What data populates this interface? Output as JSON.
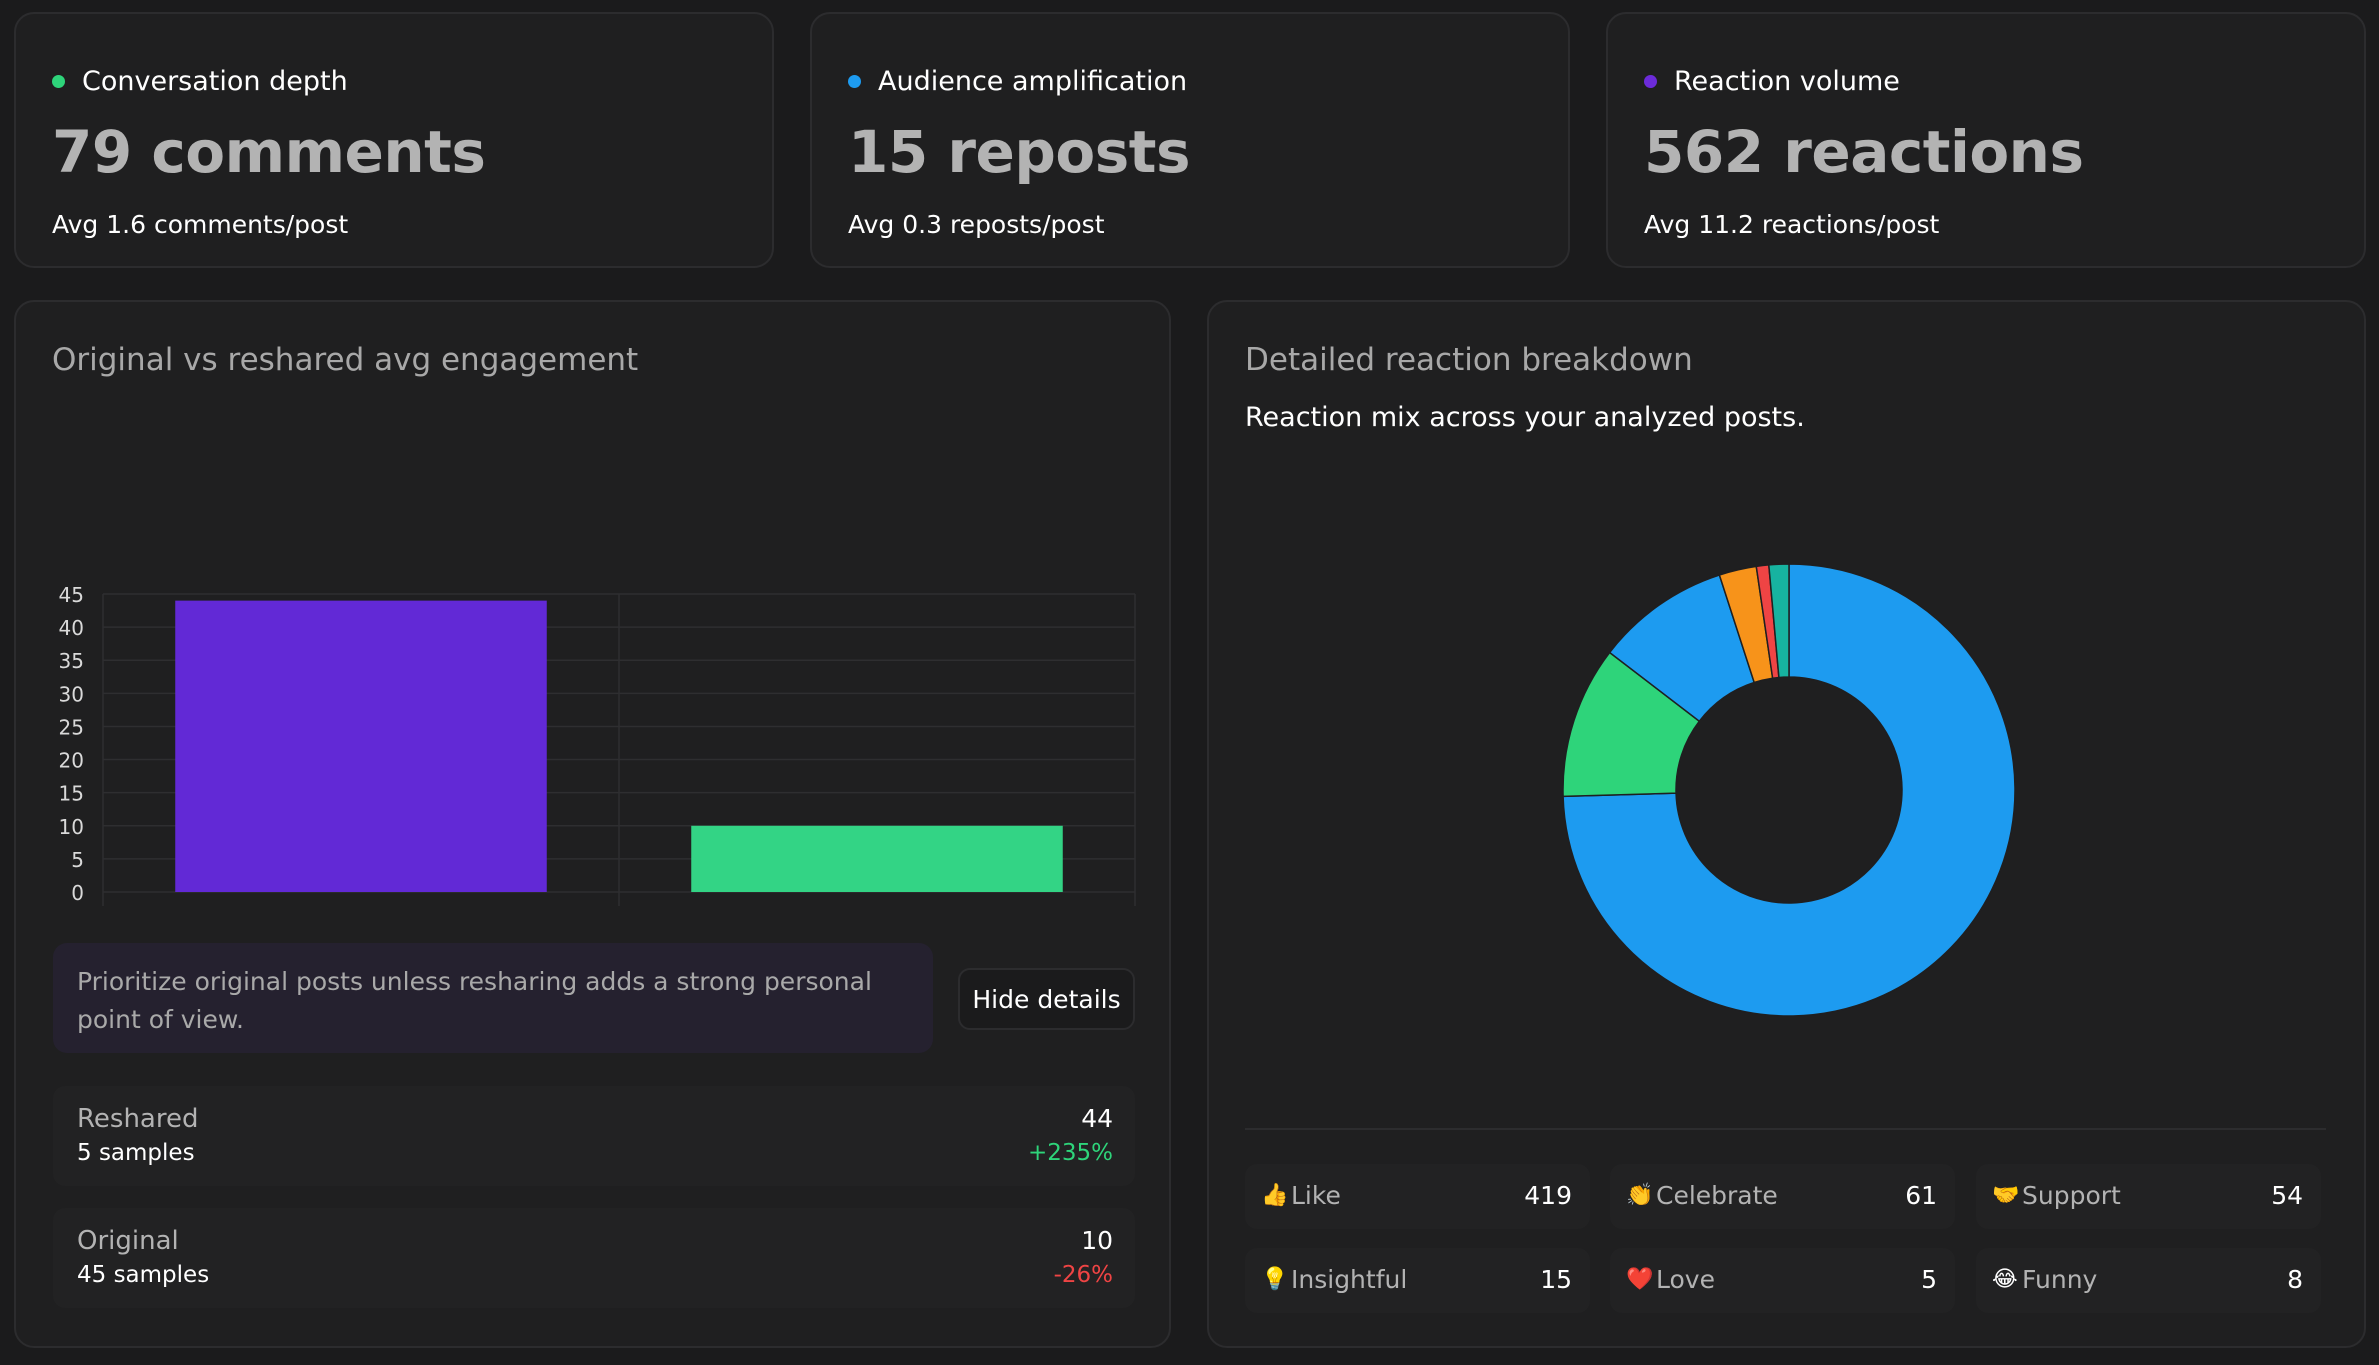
{
  "kpis": [
    {
      "label": "Conversation depth",
      "value": "79 comments",
      "sub": "Avg 1.6 comments/post",
      "dot_color": "#2ed47a"
    },
    {
      "label": "Audience amplification",
      "value": "15 reposts",
      "sub": "Avg 0.3 reposts/post",
      "dot_color": "#1d9bf0"
    },
    {
      "label": "Reaction volume",
      "value": "562 reactions",
      "sub": "Avg 11.2 reactions/post",
      "dot_color": "#6c2bd9"
    }
  ],
  "engagement": {
    "title": "Original vs reshared avg engagement",
    "tip": "Prioritize original posts unless resharing adds a strong personal point of view.",
    "hide_label": "Hide details",
    "rows": [
      {
        "name": "Reshared",
        "samples": "5 samples",
        "value": "44",
        "delta": "+235%",
        "delta_color": "#2ed47a"
      },
      {
        "name": "Original",
        "samples": "45 samples",
        "value": "10",
        "delta": "-26%",
        "delta_color": "#ef4444"
      }
    ]
  },
  "chart_data": [
    {
      "type": "bar",
      "categories": [
        "Reshared",
        "Original"
      ],
      "values": [
        44,
        10
      ],
      "colors": [
        "#6229d6",
        "#33d485"
      ],
      "ylim": [
        0,
        45
      ],
      "yticks": [
        0,
        5,
        10,
        15,
        20,
        25,
        30,
        35,
        40,
        45
      ],
      "grid": true,
      "title": "Original vs reshared avg engagement"
    },
    {
      "type": "pie",
      "donut": true,
      "categories": [
        "Like",
        "Celebrate",
        "Support",
        "Insightful",
        "Love",
        "Funny"
      ],
      "values": [
        419,
        61,
        54,
        15,
        5,
        8
      ],
      "colors": [
        "#1d9bf0",
        "#2ed47a",
        "#1d9bf0",
        "#f7931a",
        "#ef4444",
        "#17b3a0"
      ],
      "title": "Detailed reaction breakdown"
    }
  ],
  "reactions": {
    "title": "Detailed reaction breakdown",
    "subtitle": "Reaction mix across your analyzed posts.",
    "items": [
      {
        "icon": "👍",
        "label": "Like",
        "count": "419"
      },
      {
        "icon": "👏",
        "label": "Celebrate",
        "count": "61"
      },
      {
        "icon": "🤝",
        "label": "Support",
        "count": "54"
      },
      {
        "icon": "💡",
        "label": "Insightful",
        "count": "15"
      },
      {
        "icon": "❤️",
        "label": "Love",
        "count": "5"
      },
      {
        "icon": "😂",
        "label": "Funny",
        "count": "8"
      }
    ]
  }
}
